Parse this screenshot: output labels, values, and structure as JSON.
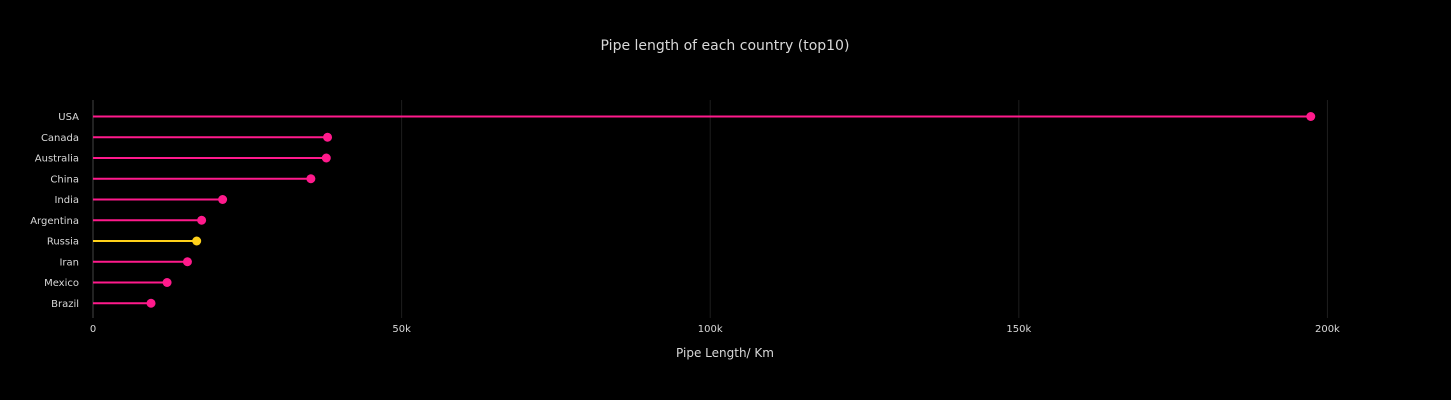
{
  "chart_data": {
    "type": "lollipop",
    "orientation": "horizontal",
    "title": "Pipe length of each country (top10)",
    "xlabel": "Pipe Length/ Km",
    "ylabel": "",
    "xlim": [
      0,
      215000
    ],
    "x_ticks": [
      0,
      50000,
      100000,
      150000,
      200000
    ],
    "x_tick_labels": [
      "0",
      "50k",
      "100k",
      "150k",
      "200k"
    ],
    "grid": true,
    "categories": [
      "USA",
      "Canada",
      "Australia",
      "China",
      "India",
      "Argentina",
      "Russia",
      "Iran",
      "Mexico",
      "Brazil"
    ],
    "values": [
      197300,
      38000,
      37800,
      35300,
      21000,
      17600,
      16800,
      15300,
      12000,
      9400
    ],
    "colors": {
      "default": "#ff1a8c",
      "highlight": "#ffd11a",
      "highlight_category": "Russia",
      "background": "#000000",
      "text": "#d9d9d9",
      "grid": "#1e1e1e",
      "axis_line": "#444444"
    }
  }
}
